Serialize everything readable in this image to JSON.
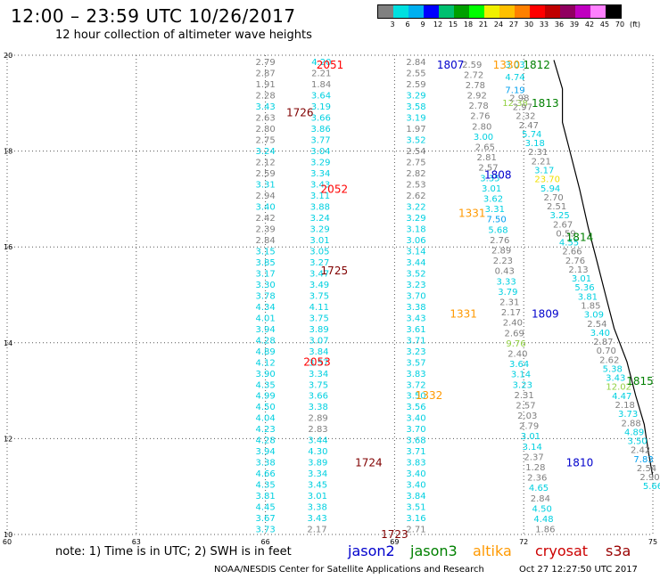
{
  "title": "12:00 – 23:59 UTC 10/26/2017",
  "subtitle": "12 hour collection of altimeter wave heights",
  "color_scale": {
    "labels": [
      "3",
      "6",
      "9",
      "12",
      "15",
      "18",
      "21",
      "24",
      "27",
      "30",
      "33",
      "36",
      "39",
      "42",
      "45",
      "70",
      "(ft)"
    ],
    "colors": [
      "#808080",
      "#00e0e0",
      "#00b0f0",
      "#0000ff",
      "#00c070",
      "#00a000",
      "#00ff00",
      "#f0f000",
      "#ffc000",
      "#ff8000",
      "#ff0000",
      "#c00000",
      "#900060",
      "#c000c0",
      "#ff80ff",
      "#000000"
    ]
  },
  "chart_data": {
    "type": "scatter",
    "x_axis": {
      "ticks": [
        60,
        63,
        66,
        69,
        72,
        75
      ],
      "range": [
        60,
        75
      ]
    },
    "y_axis": {
      "ticks": [
        10,
        12,
        14,
        16,
        18,
        20
      ],
      "range": [
        10,
        20
      ]
    },
    "grid": true,
    "tracks": [
      {
        "id": "2051",
        "color": "#ff0000",
        "label_at": [
          67.5,
          19.8
        ]
      },
      {
        "id": "1726",
        "color": "#800000",
        "label_at": [
          66.8,
          18.8
        ]
      },
      {
        "id": "2052",
        "color": "#ff0000",
        "label_at": [
          67.6,
          17.2
        ]
      },
      {
        "id": "1725",
        "color": "#800000",
        "label_at": [
          67.6,
          15.5
        ]
      },
      {
        "id": "2053",
        "color": "#ff0000",
        "label_at": [
          67.2,
          13.6
        ]
      },
      {
        "id": "1724",
        "color": "#800000",
        "label_at": [
          68.4,
          11.5
        ]
      },
      {
        "id": "1723",
        "color": "#800000",
        "label_at": [
          69.0,
          10.0
        ]
      },
      {
        "id": "1807",
        "color": "#0000cc",
        "label_at": [
          70.3,
          19.8
        ]
      },
      {
        "id": "1808",
        "color": "#0000cc",
        "label_at": [
          71.4,
          17.5
        ]
      },
      {
        "id": "1809",
        "color": "#0000cc",
        "label_at": [
          72.5,
          14.6
        ]
      },
      {
        "id": "1810",
        "color": "#0000cc",
        "label_at": [
          73.3,
          11.5
        ]
      },
      {
        "id": "1812",
        "color": "#008000",
        "label_at": [
          72.3,
          19.8
        ]
      },
      {
        "id": "1813",
        "color": "#008000",
        "label_at": [
          72.5,
          19.0
        ]
      },
      {
        "id": "1814",
        "color": "#008000",
        "label_at": [
          73.3,
          16.2
        ]
      },
      {
        "id": "1815",
        "color": "#008000",
        "label_at": [
          74.7,
          13.2
        ]
      },
      {
        "id": "1330",
        "color": "#ff9900",
        "label_at": [
          71.6,
          19.8
        ]
      },
      {
        "id": "1331",
        "color": "#ff9900",
        "label_at": [
          70.8,
          16.7
        ]
      },
      {
        "id": "1331",
        "color": "#ff9900",
        "label_at": [
          70.6,
          14.6
        ]
      },
      {
        "id": "1332",
        "color": "#ff9900",
        "label_at": [
          69.8,
          12.9
        ]
      }
    ],
    "observations": [
      {
        "track": "1726",
        "values": [
          2.79,
          2.87,
          1.91,
          2.28,
          3.43,
          2.63,
          2.8,
          2.75,
          3.24,
          2.12,
          2.59,
          3.31,
          2.94,
          3.4,
          2.42,
          2.39,
          2.84,
          3.15,
          3.85,
          3.17,
          3.3,
          3.78,
          4.34,
          4.01,
          3.94,
          4.28,
          4.89,
          4.12,
          3.9,
          4.35,
          4.99,
          4.5,
          4.04,
          4.23,
          4.28,
          3.94,
          3.38,
          4.66,
          4.35,
          3.81,
          4.45,
          3.67,
          3.73
        ]
      },
      {
        "track": "2051",
        "values": [
          4.2,
          2.21,
          1.84,
          3.64,
          3.19,
          3.66,
          3.86,
          3.77,
          3.04,
          3.29,
          3.34,
          3.43,
          3.11,
          3.88,
          3.24,
          3.29,
          3.01,
          3.05,
          3.27,
          3.47,
          3.49,
          3.75,
          4.11,
          3.75,
          3.89,
          3.07,
          3.84,
          3.57,
          3.34,
          3.75,
          3.66,
          3.38,
          2.89,
          2.83,
          3.44,
          4.3,
          3.89,
          3.34,
          3.45,
          3.01,
          3.38,
          3.43,
          2.17
        ]
      },
      {
        "track": "1807",
        "values": [
          2.84,
          2.55,
          2.59,
          3.29,
          3.58,
          3.19,
          1.97,
          3.52,
          2.54,
          2.75,
          2.82,
          2.53,
          2.62,
          3.22,
          3.29,
          3.18,
          3.06,
          3.14,
          3.44,
          3.52,
          3.23,
          3.7,
          3.38,
          3.43,
          3.61,
          3.71,
          3.23,
          3.57,
          3.83,
          3.72,
          3.5,
          3.56,
          3.4,
          3.7,
          3.68,
          3.71,
          3.83,
          3.4,
          3.4,
          3.84,
          3.51,
          3.16,
          2.71
        ]
      },
      {
        "track": "1808",
        "values": [
          2.59,
          2.72,
          2.78,
          2.92,
          2.78,
          2.76,
          2.8,
          3.0,
          2.65,
          2.81,
          2.57,
          3.35,
          3.01,
          3.62,
          3.31,
          7.5,
          5.68,
          2.76,
          2.89,
          2.23,
          0.43,
          3.33,
          3.79,
          2.31,
          2.17,
          2.4,
          2.69,
          9.76,
          2.4,
          3.64,
          3.14,
          3.23,
          2.31,
          2.57,
          2.03,
          2.79,
          3.01,
          3.14,
          2.37,
          1.28,
          2.36,
          4.65,
          2.84,
          4.5,
          4.48,
          1.86
        ]
      },
      {
        "track": "1330",
        "values": [
          3.03,
          4.74,
          7.19,
          12.38
        ]
      },
      {
        "track": "1813",
        "values": [
          2.98,
          2.97,
          2.32,
          2.47,
          5.74,
          3.18,
          2.31,
          2.21,
          3.17,
          23.7,
          5.94,
          2.7,
          2.51,
          3.25,
          2.67,
          0.59,
          4.55,
          2.66,
          2.76,
          2.13,
          3.01,
          5.36,
          3.81,
          1.85,
          3.09,
          2.54,
          3.4,
          2.87,
          0.7,
          2.62,
          5.38,
          3.43,
          12.02,
          4.47,
          2.18,
          3.73,
          2.88,
          4.89,
          3.5,
          2.42,
          7.83,
          2.54,
          2.9,
          5.66
        ]
      }
    ]
  },
  "note": "note: 1) Time is in UTC; 2) SWH is in feet",
  "legend": [
    {
      "name": "jason2",
      "color": "#0000cc"
    },
    {
      "name": "jason3",
      "color": "#008000"
    },
    {
      "name": "altika",
      "color": "#ff9900"
    },
    {
      "name": "cryosat",
      "color": "#cc0000"
    },
    {
      "name": "s3a",
      "color": "#990000"
    }
  ],
  "credit": "NOAA/NESDIS Center for Satellite Applications and Research",
  "timestamp": "Oct 27 12:27:50 UTC 2017"
}
